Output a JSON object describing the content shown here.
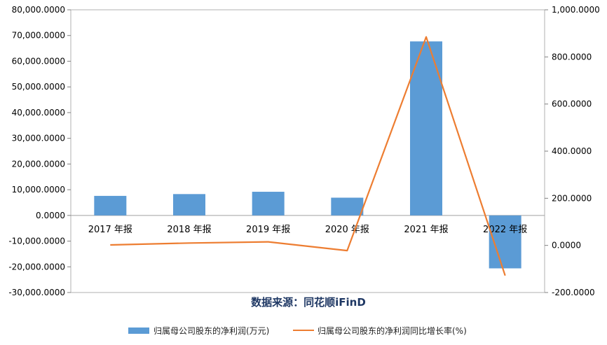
{
  "chart_data": {
    "type": "bar",
    "categories": [
      "2017 年报",
      "2018 年报",
      "2019 年报",
      "2020 年报",
      "2021 年报",
      "2022 年报"
    ],
    "series": [
      {
        "name": "归属母公司股东的净利润(万元)",
        "type": "bar",
        "axis": "left",
        "color": "#5b9bd5",
        "values": [
          7600,
          8300,
          9200,
          6900,
          67700,
          -20600
        ]
      },
      {
        "name": "归属母公司股东的净利润同比增长率(%)",
        "type": "line",
        "axis": "right",
        "color": "#ed7d31",
        "values": [
          2,
          10,
          15,
          -22,
          885,
          -128
        ]
      }
    ],
    "y_left": {
      "min": -30000,
      "max": 80000,
      "ticks": [
        80000,
        70000,
        60000,
        50000,
        40000,
        30000,
        20000,
        10000,
        0,
        -10000,
        -20000,
        -30000
      ],
      "tick_labels": [
        "80,000.0000",
        "70,000.0000",
        "60,000.0000",
        "50,000.0000",
        "40,000.0000",
        "30,000.0000",
        "20,000.0000",
        "10,000.0000",
        "0.0000",
        "-10,000.0000",
        "-20,000.0000",
        "-30,000.0000"
      ]
    },
    "y_right": {
      "min": -200,
      "max": 1000,
      "ticks": [
        1000,
        800,
        600,
        400,
        200,
        0,
        -200
      ],
      "tick_labels": [
        "1,000.0000",
        "800.0000",
        "600.0000",
        "400.0000",
        "200.0000",
        "0.0000",
        "-200.0000"
      ]
    },
    "source": "数据来源：同花顺iFinD",
    "legend_position": "bottom"
  }
}
